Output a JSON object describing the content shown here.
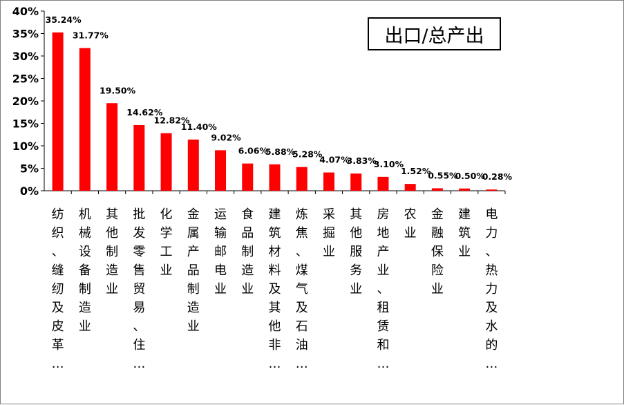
{
  "chart_data": {
    "type": "bar",
    "title": "出口/总产出",
    "xlabel": "",
    "ylabel": "",
    "ylim": [
      0,
      40
    ],
    "y_ticks": [
      "0%",
      "5%",
      "10%",
      "15%",
      "20%",
      "25%",
      "30%",
      "35%",
      "40%"
    ],
    "categories": [
      "纺织、缝纫及皮革…",
      "机械设备制造业",
      "其他制造业",
      "批发零售贸易、住…",
      "化学工业",
      "金属产品制造业",
      "运输邮电业",
      "食品制造业",
      "建筑材料及其他非…",
      "炼焦、煤气及石油…",
      "采掘业",
      "其他服务业",
      "房地产业、租赁和…",
      "农业",
      "金融保险业",
      "建筑业",
      "电力、热力及水的…"
    ],
    "values": [
      35.24,
      31.77,
      19.5,
      14.62,
      12.82,
      11.4,
      9.02,
      6.06,
      5.88,
      5.28,
      4.07,
      3.83,
      3.1,
      1.52,
      0.55,
      0.5,
      0.28
    ],
    "value_labels": [
      "35.24%",
      "31.77%",
      "19.50%",
      "14.62%",
      "12.82%",
      "11.40%",
      "9.02%",
      "6.06%",
      "5.88%",
      "5.28%",
      "4.07%",
      "3.83%",
      "3.10%",
      "1.52%",
      "0.55%",
      "0.50%",
      "0.28%"
    ],
    "bar_color": "#ff0000",
    "grid": false,
    "legend": "none"
  }
}
